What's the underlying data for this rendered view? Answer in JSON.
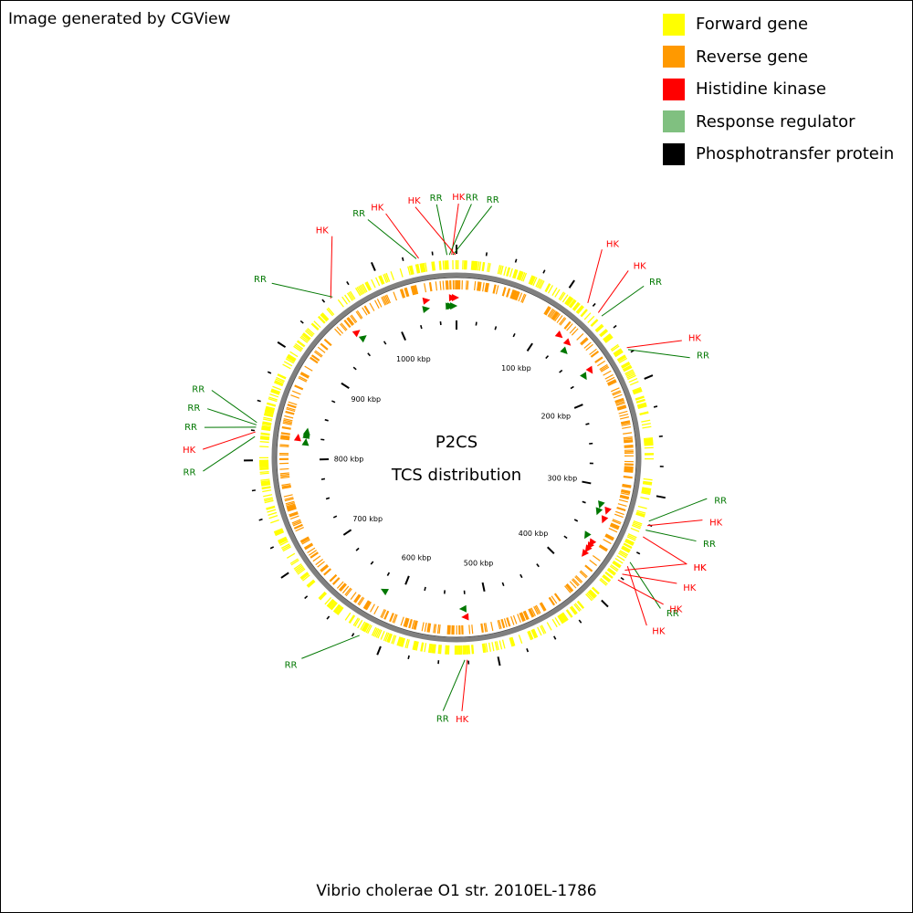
{
  "header": {
    "attribution": "Image generated by CGView"
  },
  "legend": {
    "items": [
      {
        "label": "Forward gene",
        "color": "#ffff00"
      },
      {
        "label": "Reverse gene",
        "color": "#ff9900"
      },
      {
        "label": "Histidine kinase",
        "color": "#ff0000"
      },
      {
        "label": "Response regulator",
        "color": "#80c080"
      },
      {
        "label": "Phosphotransfer protein",
        "color": "#000000"
      }
    ]
  },
  "map": {
    "title_line1": "P2CS",
    "title_line2": "TCS distribution",
    "sequence_length_kbp": 1070,
    "ticks": [
      {
        "kbp": 100,
        "label": "100 kbp"
      },
      {
        "kbp": 200,
        "label": "200 kbp"
      },
      {
        "kbp": 300,
        "label": "300 kbp"
      },
      {
        "kbp": 400,
        "label": "400 kbp"
      },
      {
        "kbp": 500,
        "label": "500 kbp"
      },
      {
        "kbp": 600,
        "label": "600 kbp"
      },
      {
        "kbp": 700,
        "label": "700 kbp"
      },
      {
        "kbp": 800,
        "label": "800 kbp"
      },
      {
        "kbp": 900,
        "label": "900 kbp"
      },
      {
        "kbp": 1000,
        "label": "1000 kbp"
      }
    ],
    "features": [
      {
        "label": "RR",
        "type": "response-regulator",
        "kbp": 1036
      },
      {
        "label": "HK",
        "type": "histidine-kinase",
        "kbp": 1038
      },
      {
        "label": "RR",
        "type": "response-regulator",
        "kbp": 1062
      },
      {
        "label": "HK",
        "type": "histidine-kinase",
        "kbp": 1066
      },
      {
        "label": "RR",
        "type": "response-regulator",
        "kbp": 1064
      },
      {
        "label": "RR",
        "type": "response-regulator",
        "kbp": 1067
      },
      {
        "label": "HK",
        "type": "histidine-kinase",
        "kbp": 1069
      },
      {
        "label": "HK",
        "type": "histidine-kinase",
        "kbp": 120
      },
      {
        "label": "HK",
        "type": "histidine-kinase",
        "kbp": 132
      },
      {
        "label": "RR",
        "type": "response-regulator",
        "kbp": 136
      },
      {
        "label": "HK",
        "type": "histidine-kinase",
        "kbp": 170
      },
      {
        "label": "RR",
        "type": "response-regulator",
        "kbp": 172
      },
      {
        "label": "RR",
        "type": "response-regulator",
        "kbp": 322
      },
      {
        "label": "HK",
        "type": "histidine-kinase",
        "kbp": 326
      },
      {
        "label": "RR",
        "type": "response-regulator",
        "kbp": 330
      },
      {
        "label": "HK",
        "type": "histidine-kinase",
        "kbp": 336
      },
      {
        "label": "RR",
        "type": "response-regulator",
        "kbp": 360
      },
      {
        "label": "HK",
        "type": "histidine-kinase",
        "kbp": 364
      },
      {
        "label": "HK",
        "type": "histidine-kinase",
        "kbp": 368
      },
      {
        "label": "HK",
        "type": "histidine-kinase",
        "kbp": 372
      },
      {
        "label": "HK",
        "type": "histidine-kinase",
        "kbp": 378
      },
      {
        "label": "HK",
        "type": "histidine-kinase",
        "kbp": 526
      },
      {
        "label": "RR",
        "type": "response-regulator",
        "kbp": 528
      },
      {
        "label": "RR",
        "type": "response-regulator",
        "kbp": 620
      },
      {
        "label": "RR",
        "type": "response-regulator",
        "kbp": 820
      },
      {
        "label": "HK",
        "type": "histidine-kinase",
        "kbp": 824
      },
      {
        "label": "RR",
        "type": "response-regulator",
        "kbp": 828
      },
      {
        "label": "RR",
        "type": "response-regulator",
        "kbp": 830
      },
      {
        "label": "RR",
        "type": "response-regulator",
        "kbp": 832
      },
      {
        "label": "HK",
        "type": "histidine-kinase",
        "kbp": 956
      },
      {
        "label": "RR",
        "type": "response-regulator",
        "kbp": 958
      }
    ]
  },
  "footer": {
    "organism": "Vibrio cholerae O1 str. 2010EL-1786"
  }
}
